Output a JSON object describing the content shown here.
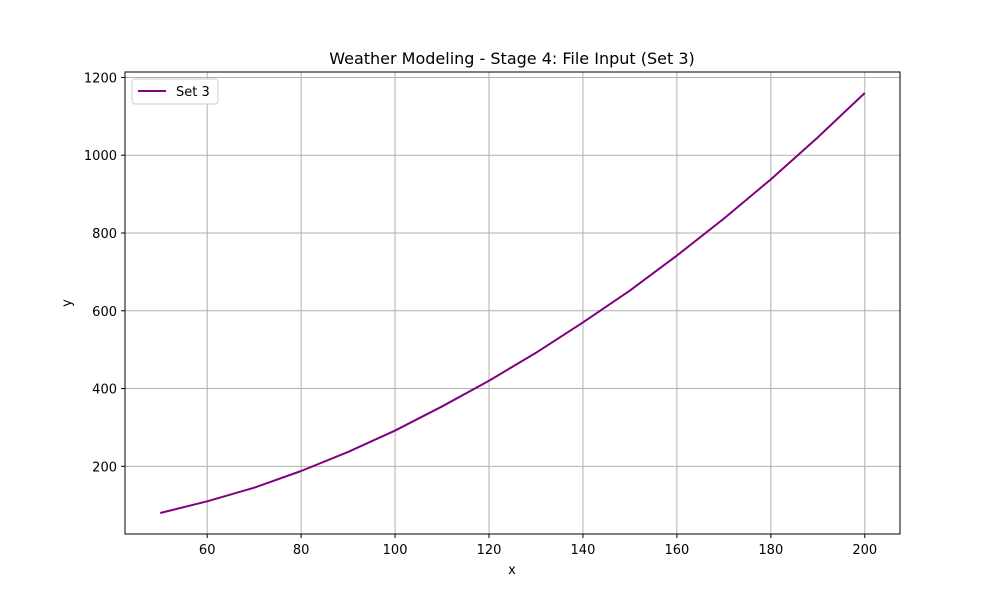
{
  "chart_data": {
    "type": "line",
    "title": "Weather Modeling - Stage 4: File Input (Set 3)",
    "xlabel": "x",
    "ylabel": "y",
    "xlim": [
      42.5,
      207.5
    ],
    "ylim": [
      26,
      1214
    ],
    "x_ticks": [
      60,
      80,
      100,
      120,
      140,
      160,
      180,
      200
    ],
    "y_ticks": [
      200,
      400,
      600,
      800,
      1000,
      1200
    ],
    "grid": true,
    "legend_position": "upper-left",
    "series": [
      {
        "name": "Set 3",
        "color": "#800080",
        "x": [
          50,
          60,
          70,
          80,
          90,
          100,
          110,
          120,
          130,
          140,
          150,
          160,
          170,
          180,
          190,
          200
        ],
        "y": [
          80,
          110,
          145,
          188,
          237,
          292,
          354,
          420,
          492,
          570,
          652,
          742,
          837,
          938,
          1046,
          1160
        ]
      }
    ]
  }
}
